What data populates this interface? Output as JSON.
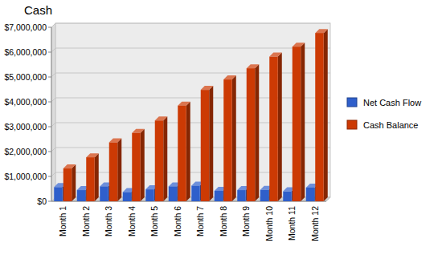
{
  "chart_data": {
    "type": "bar",
    "title": "Cash",
    "categories": [
      "Month 1",
      "Month 2",
      "Month 3",
      "Month 4",
      "Month 5",
      "Month 6",
      "Month 7",
      "Month 8",
      "Month 9",
      "Month 10",
      "Month 11",
      "Month 12"
    ],
    "series": [
      {
        "name": "Net Cash Flow",
        "color": "#2f5fcb",
        "values": [
          570000,
          450000,
          600000,
          370000,
          480000,
          600000,
          630000,
          420000,
          450000,
          460000,
          400000,
          550000
        ]
      },
      {
        "name": "Cash Balance",
        "color": "#cc3a04",
        "values": [
          1320000,
          1770000,
          2370000,
          2750000,
          3250000,
          3850000,
          4480000,
          4900000,
          5350000,
          5820000,
          6220000,
          6770000
        ]
      }
    ],
    "ylim": [
      0,
      7000000
    ],
    "yticks": [
      {
        "value": 0,
        "label": "$0"
      },
      {
        "value": 1000000,
        "label": "$1,000,000"
      },
      {
        "value": 2000000,
        "label": "$2,000,000"
      },
      {
        "value": 3000000,
        "label": "$3,000,000"
      },
      {
        "value": 4000000,
        "label": "$4,000,000"
      },
      {
        "value": 5000000,
        "label": "$5,000,000"
      },
      {
        "value": 6000000,
        "label": "$6,000,000"
      },
      {
        "value": 7000000,
        "label": "$7,000,000"
      }
    ],
    "grid": true,
    "legend": "right"
  }
}
